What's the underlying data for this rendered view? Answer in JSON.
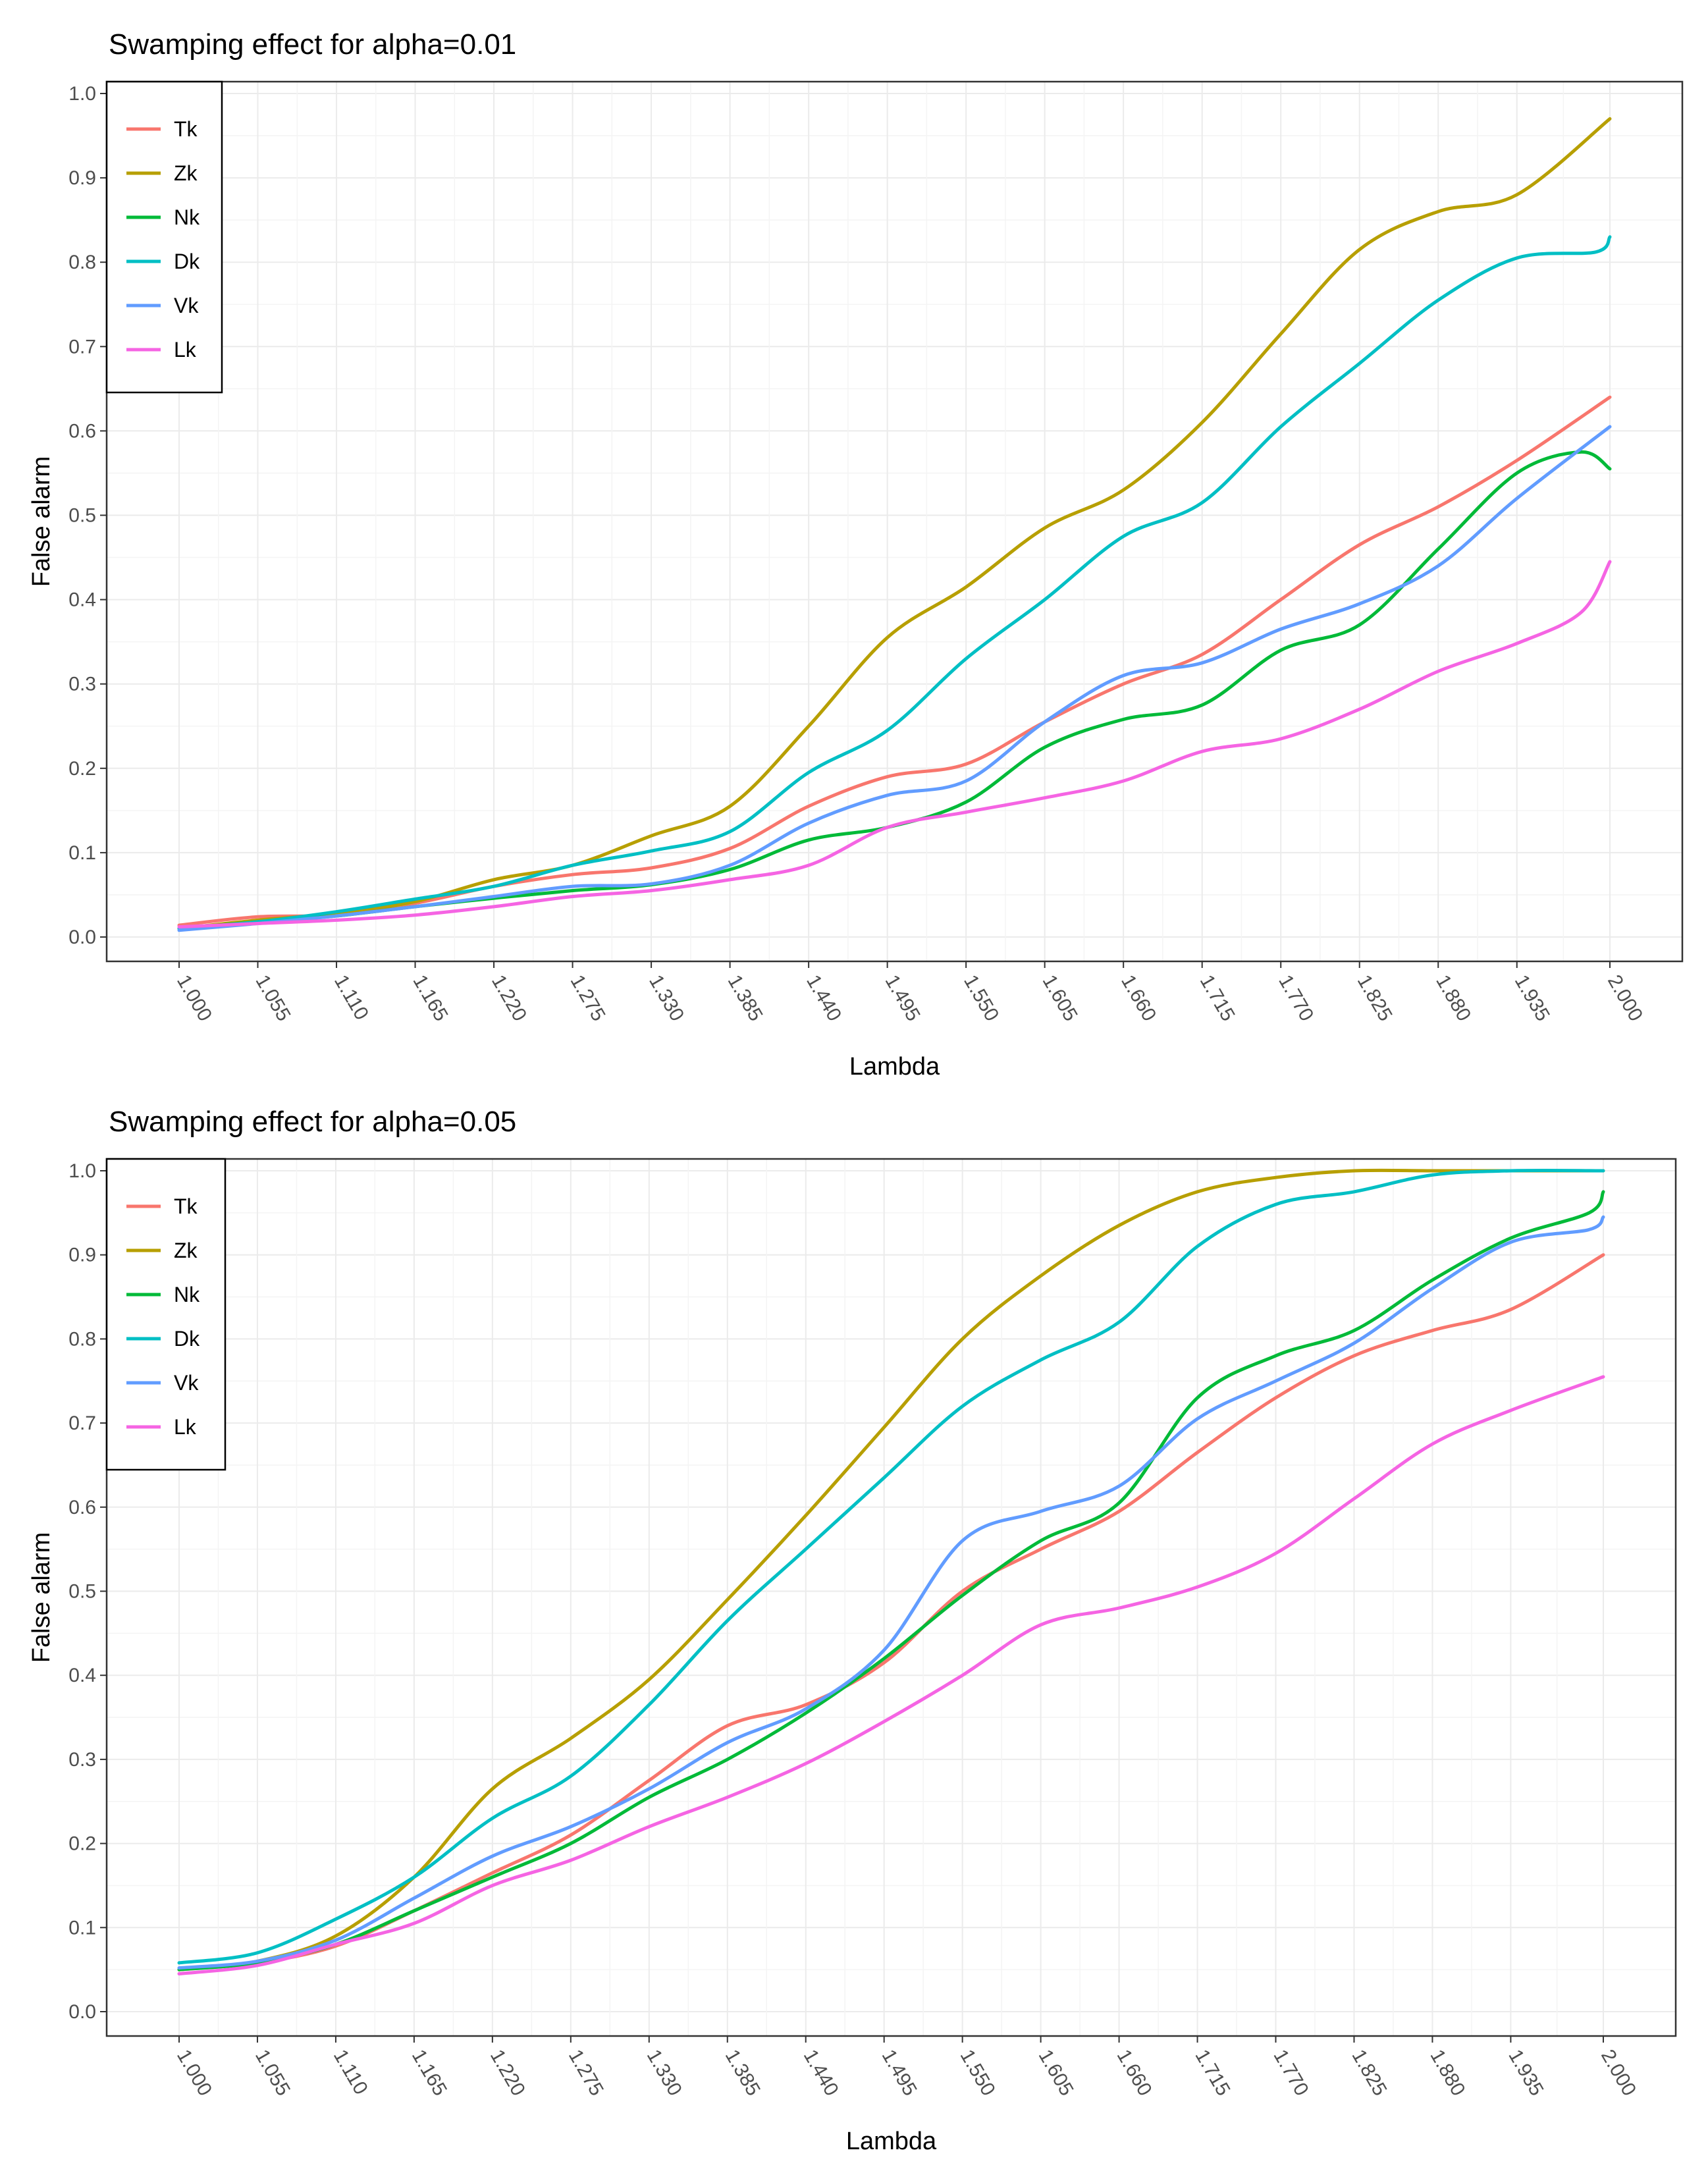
{
  "chart_data": [
    {
      "type": "line",
      "title": "Swamping effect for alpha=0.01",
      "xlabel": "Lambda",
      "ylabel": "False alarm",
      "xlim": [
        1.0,
        2.0
      ],
      "ylim": [
        0.0,
        1.0
      ],
      "x_ticks": [
        "1.000",
        "1.055",
        "1.110",
        "1.165",
        "1.220",
        "1.275",
        "1.330",
        "1.385",
        "1.440",
        "1.495",
        "1.550",
        "1.605",
        "1.660",
        "1.715",
        "1.770",
        "1.825",
        "1.880",
        "1.935",
        "2.000"
      ],
      "y_ticks": [
        "0.0",
        "0.1",
        "0.2",
        "0.3",
        "0.4",
        "0.5",
        "0.6",
        "0.7",
        "0.8",
        "0.9",
        "1.0"
      ],
      "legend": "top-left",
      "grid": true,
      "series": [
        {
          "name": "Tk",
          "color": "#F8766D",
          "points": [
            [
              1.0,
              0.014
            ],
            [
              1.055,
              0.024
            ],
            [
              1.11,
              0.026
            ],
            [
              1.165,
              0.04
            ],
            [
              1.22,
              0.06
            ],
            [
              1.275,
              0.074
            ],
            [
              1.33,
              0.082
            ],
            [
              1.385,
              0.105
            ],
            [
              1.44,
              0.155
            ],
            [
              1.495,
              0.19
            ],
            [
              1.55,
              0.205
            ],
            [
              1.605,
              0.255
            ],
            [
              1.66,
              0.3
            ],
            [
              1.715,
              0.335
            ],
            [
              1.77,
              0.4
            ],
            [
              1.825,
              0.465
            ],
            [
              1.88,
              0.51
            ],
            [
              1.935,
              0.565
            ],
            [
              2.0,
              0.64
            ]
          ]
        },
        {
          "name": "Zk",
          "color": "#B79F00",
          "points": [
            [
              1.0,
              0.01
            ],
            [
              1.055,
              0.02
            ],
            [
              1.11,
              0.028
            ],
            [
              1.165,
              0.042
            ],
            [
              1.22,
              0.068
            ],
            [
              1.275,
              0.085
            ],
            [
              1.33,
              0.12
            ],
            [
              1.385,
              0.155
            ],
            [
              1.44,
              0.25
            ],
            [
              1.495,
              0.355
            ],
            [
              1.55,
              0.415
            ],
            [
              1.605,
              0.485
            ],
            [
              1.66,
              0.53
            ],
            [
              1.715,
              0.61
            ],
            [
              1.77,
              0.715
            ],
            [
              1.825,
              0.815
            ],
            [
              1.88,
              0.86
            ],
            [
              1.935,
              0.88
            ],
            [
              2.0,
              0.97
            ]
          ]
        },
        {
          "name": "Nk",
          "color": "#00BA38",
          "points": [
            [
              1.0,
              0.01
            ],
            [
              1.055,
              0.018
            ],
            [
              1.11,
              0.025
            ],
            [
              1.165,
              0.036
            ],
            [
              1.22,
              0.046
            ],
            [
              1.275,
              0.055
            ],
            [
              1.33,
              0.062
            ],
            [
              1.385,
              0.08
            ],
            [
              1.44,
              0.115
            ],
            [
              1.495,
              0.13
            ],
            [
              1.55,
              0.16
            ],
            [
              1.605,
              0.225
            ],
            [
              1.66,
              0.258
            ],
            [
              1.715,
              0.275
            ],
            [
              1.77,
              0.34
            ],
            [
              1.825,
              0.37
            ],
            [
              1.88,
              0.46
            ],
            [
              1.935,
              0.55
            ],
            [
              1.98,
              0.575
            ],
            [
              2.0,
              0.555
            ]
          ]
        },
        {
          "name": "Dk",
          "color": "#00BFC4",
          "points": [
            [
              1.0,
              0.01
            ],
            [
              1.055,
              0.018
            ],
            [
              1.11,
              0.03
            ],
            [
              1.165,
              0.045
            ],
            [
              1.22,
              0.06
            ],
            [
              1.275,
              0.085
            ],
            [
              1.33,
              0.102
            ],
            [
              1.385,
              0.125
            ],
            [
              1.44,
              0.195
            ],
            [
              1.495,
              0.245
            ],
            [
              1.55,
              0.33
            ],
            [
              1.605,
              0.4
            ],
            [
              1.66,
              0.475
            ],
            [
              1.715,
              0.515
            ],
            [
              1.77,
              0.605
            ],
            [
              1.825,
              0.68
            ],
            [
              1.88,
              0.755
            ],
            [
              1.935,
              0.805
            ],
            [
              1.99,
              0.812
            ],
            [
              2.0,
              0.83
            ]
          ]
        },
        {
          "name": "Vk",
          "color": "#619CFF",
          "points": [
            [
              1.0,
              0.008
            ],
            [
              1.055,
              0.016
            ],
            [
              1.11,
              0.025
            ],
            [
              1.165,
              0.036
            ],
            [
              1.22,
              0.048
            ],
            [
              1.275,
              0.06
            ],
            [
              1.33,
              0.063
            ],
            [
              1.385,
              0.085
            ],
            [
              1.44,
              0.135
            ],
            [
              1.495,
              0.168
            ],
            [
              1.55,
              0.185
            ],
            [
              1.605,
              0.255
            ],
            [
              1.66,
              0.31
            ],
            [
              1.715,
              0.325
            ],
            [
              1.77,
              0.365
            ],
            [
              1.825,
              0.395
            ],
            [
              1.88,
              0.44
            ],
            [
              1.935,
              0.52
            ],
            [
              2.0,
              0.605
            ]
          ]
        },
        {
          "name": "Lk",
          "color": "#F564E3",
          "points": [
            [
              1.0,
              0.012
            ],
            [
              1.055,
              0.016
            ],
            [
              1.11,
              0.02
            ],
            [
              1.165,
              0.026
            ],
            [
              1.22,
              0.036
            ],
            [
              1.275,
              0.048
            ],
            [
              1.33,
              0.055
            ],
            [
              1.385,
              0.068
            ],
            [
              1.44,
              0.085
            ],
            [
              1.495,
              0.13
            ],
            [
              1.55,
              0.148
            ],
            [
              1.605,
              0.165
            ],
            [
              1.66,
              0.185
            ],
            [
              1.715,
              0.22
            ],
            [
              1.77,
              0.235
            ],
            [
              1.825,
              0.27
            ],
            [
              1.88,
              0.315
            ],
            [
              1.935,
              0.348
            ],
            [
              1.98,
              0.385
            ],
            [
              2.0,
              0.445
            ]
          ]
        }
      ]
    },
    {
      "type": "line",
      "title": "Swamping effect for alpha=0.05",
      "xlabel": "Lambda",
      "ylabel": "False alarm",
      "xlim": [
        1.0,
        2.0
      ],
      "ylim": [
        0.0,
        1.0
      ],
      "x_ticks": [
        "1.000",
        "1.055",
        "1.110",
        "1.165",
        "1.220",
        "1.275",
        "1.330",
        "1.385",
        "1.440",
        "1.495",
        "1.550",
        "1.605",
        "1.660",
        "1.715",
        "1.770",
        "1.825",
        "1.880",
        "1.935",
        "2.000"
      ],
      "y_ticks": [
        "0.0",
        "0.1",
        "0.2",
        "0.3",
        "0.4",
        "0.5",
        "0.6",
        "0.7",
        "0.8",
        "0.9",
        "1.0"
      ],
      "legend": "top-left",
      "grid": true,
      "series": [
        {
          "name": "Tk",
          "color": "#F8766D",
          "points": [
            [
              1.0,
              0.05
            ],
            [
              1.055,
              0.058
            ],
            [
              1.11,
              0.078
            ],
            [
              1.165,
              0.12
            ],
            [
              1.22,
              0.165
            ],
            [
              1.275,
              0.21
            ],
            [
              1.33,
              0.275
            ],
            [
              1.385,
              0.34
            ],
            [
              1.44,
              0.365
            ],
            [
              1.495,
              0.415
            ],
            [
              1.55,
              0.5
            ],
            [
              1.605,
              0.55
            ],
            [
              1.66,
              0.595
            ],
            [
              1.715,
              0.665
            ],
            [
              1.77,
              0.73
            ],
            [
              1.825,
              0.78
            ],
            [
              1.88,
              0.81
            ],
            [
              1.935,
              0.835
            ],
            [
              2.0,
              0.9
            ]
          ]
        },
        {
          "name": "Zk",
          "color": "#B79F00",
          "points": [
            [
              1.0,
              0.05
            ],
            [
              1.055,
              0.06
            ],
            [
              1.11,
              0.09
            ],
            [
              1.165,
              0.16
            ],
            [
              1.22,
              0.265
            ],
            [
              1.275,
              0.325
            ],
            [
              1.33,
              0.395
            ],
            [
              1.385,
              0.49
            ],
            [
              1.44,
              0.59
            ],
            [
              1.495,
              0.695
            ],
            [
              1.55,
              0.8
            ],
            [
              1.605,
              0.875
            ],
            [
              1.66,
              0.935
            ],
            [
              1.715,
              0.975
            ],
            [
              1.77,
              0.992
            ],
            [
              1.825,
              1.0
            ],
            [
              1.88,
              1.0
            ],
            [
              1.935,
              1.0
            ],
            [
              2.0,
              1.0
            ]
          ]
        },
        {
          "name": "Nk",
          "color": "#00BA38",
          "points": [
            [
              1.0,
              0.05
            ],
            [
              1.055,
              0.058
            ],
            [
              1.11,
              0.08
            ],
            [
              1.165,
              0.12
            ],
            [
              1.22,
              0.16
            ],
            [
              1.275,
              0.2
            ],
            [
              1.33,
              0.255
            ],
            [
              1.385,
              0.3
            ],
            [
              1.44,
              0.355
            ],
            [
              1.495,
              0.42
            ],
            [
              1.55,
              0.495
            ],
            [
              1.605,
              0.56
            ],
            [
              1.66,
              0.605
            ],
            [
              1.715,
              0.73
            ],
            [
              1.77,
              0.78
            ],
            [
              1.825,
              0.81
            ],
            [
              1.88,
              0.87
            ],
            [
              1.935,
              0.92
            ],
            [
              1.99,
              0.95
            ],
            [
              2.0,
              0.975
            ]
          ]
        },
        {
          "name": "Dk",
          "color": "#00BFC4",
          "points": [
            [
              1.0,
              0.058
            ],
            [
              1.055,
              0.07
            ],
            [
              1.11,
              0.11
            ],
            [
              1.165,
              0.16
            ],
            [
              1.22,
              0.23
            ],
            [
              1.275,
              0.28
            ],
            [
              1.33,
              0.365
            ],
            [
              1.385,
              0.465
            ],
            [
              1.44,
              0.55
            ],
            [
              1.495,
              0.635
            ],
            [
              1.55,
              0.72
            ],
            [
              1.605,
              0.775
            ],
            [
              1.66,
              0.82
            ],
            [
              1.715,
              0.91
            ],
            [
              1.77,
              0.96
            ],
            [
              1.825,
              0.975
            ],
            [
              1.88,
              0.995
            ],
            [
              1.935,
              1.0
            ],
            [
              2.0,
              1.0
            ]
          ]
        },
        {
          "name": "Vk",
          "color": "#619CFF",
          "points": [
            [
              1.0,
              0.052
            ],
            [
              1.055,
              0.06
            ],
            [
              1.11,
              0.085
            ],
            [
              1.165,
              0.135
            ],
            [
              1.22,
              0.185
            ],
            [
              1.275,
              0.22
            ],
            [
              1.33,
              0.265
            ],
            [
              1.385,
              0.32
            ],
            [
              1.44,
              0.36
            ],
            [
              1.495,
              0.43
            ],
            [
              1.55,
              0.56
            ],
            [
              1.605,
              0.595
            ],
            [
              1.66,
              0.625
            ],
            [
              1.715,
              0.705
            ],
            [
              1.77,
              0.75
            ],
            [
              1.825,
              0.795
            ],
            [
              1.88,
              0.86
            ],
            [
              1.935,
              0.915
            ],
            [
              1.99,
              0.93
            ],
            [
              2.0,
              0.945
            ]
          ]
        },
        {
          "name": "Lk",
          "color": "#F564E3",
          "points": [
            [
              1.0,
              0.045
            ],
            [
              1.055,
              0.055
            ],
            [
              1.11,
              0.08
            ],
            [
              1.165,
              0.105
            ],
            [
              1.22,
              0.15
            ],
            [
              1.275,
              0.18
            ],
            [
              1.33,
              0.22
            ],
            [
              1.385,
              0.255
            ],
            [
              1.44,
              0.295
            ],
            [
              1.495,
              0.345
            ],
            [
              1.55,
              0.4
            ],
            [
              1.605,
              0.46
            ],
            [
              1.66,
              0.48
            ],
            [
              1.715,
              0.505
            ],
            [
              1.77,
              0.545
            ],
            [
              1.825,
              0.61
            ],
            [
              1.88,
              0.675
            ],
            [
              1.935,
              0.715
            ],
            [
              2.0,
              0.755
            ]
          ]
        }
      ]
    }
  ]
}
